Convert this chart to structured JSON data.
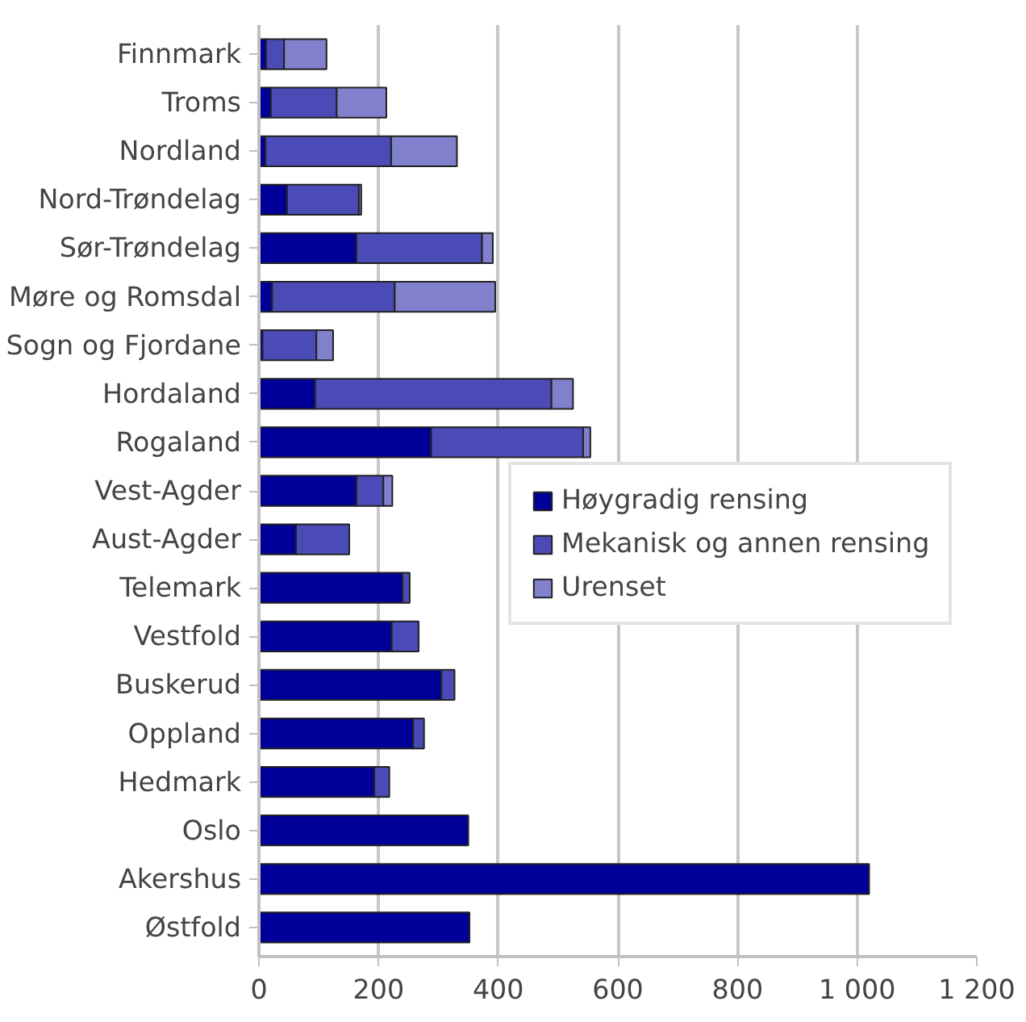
{
  "chart_data": {
    "type": "bar",
    "orientation": "horizontal",
    "stacked": true,
    "categories": [
      "Finnmark",
      "Troms",
      "Nordland",
      "Nord-Trøndelag",
      "Sør-Trøndelag",
      "Møre og Romsdal",
      "Sogn og Fjordane",
      "Hordaland",
      "Rogaland",
      "Vest-Agder",
      "Aust-Agder",
      "Telemark",
      "Vestfold",
      "Buskerud",
      "Oppland",
      "Hedmark",
      "Oslo",
      "Akershus",
      "Østfold"
    ],
    "series": [
      {
        "name": "Høygradig rensing",
        "color": "#000099",
        "values": [
          12,
          20,
          11,
          47,
          163,
          22,
          6,
          94,
          288,
          163,
          62,
          240,
          222,
          305,
          258,
          193,
          350,
          1020,
          352
        ]
      },
      {
        "name": "Mekanisk og annen rensing",
        "color": "#4b4bb7",
        "values": [
          30,
          110,
          210,
          120,
          210,
          205,
          90,
          395,
          254,
          45,
          89,
          12,
          45,
          22,
          18,
          25,
          0,
          0,
          0
        ]
      },
      {
        "name": "Urenset",
        "color": "#8080cc",
        "values": [
          71,
          83,
          110,
          4,
          18,
          168,
          28,
          36,
          12,
          15,
          0,
          0,
          0,
          0,
          0,
          0,
          0,
          0,
          0
        ]
      }
    ],
    "xlim": [
      0,
      1200
    ],
    "xticks": [
      0,
      200,
      400,
      600,
      800,
      {
        "value": 1000,
        "label": "1 000"
      },
      {
        "value": 1200,
        "label": "1 200"
      }
    ],
    "grid": "x",
    "legend": "right"
  }
}
